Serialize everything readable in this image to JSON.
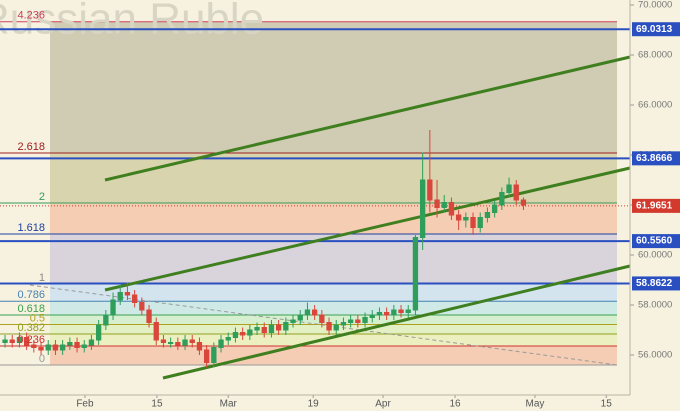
{
  "chart_data": {
    "type": "candlestick",
    "watermark": "Russian Ruble",
    "up_color": "#2f9e5b",
    "down_color": "#d9463b",
    "xlim": [
      -0.7,
      86.8
    ],
    "xticks": [
      {
        "value": 11.1,
        "label": "Feb"
      },
      {
        "value": 21.1,
        "label": "15"
      },
      {
        "value": 31,
        "label": "Mar"
      },
      {
        "value": 42.8,
        "label": "19"
      },
      {
        "value": 52.5,
        "label": "Apr"
      },
      {
        "value": 62.5,
        "label": "16"
      },
      {
        "value": 73.6,
        "label": "May"
      },
      {
        "value": 83.5,
        "label": "15"
      }
    ],
    "ylim": [
      54.4,
      70.2
    ],
    "yticks": [
      {
        "value": 56,
        "label": "56.0000"
      },
      {
        "value": 58,
        "label": "58.0000"
      },
      {
        "value": 60,
        "label": "60.0000"
      },
      {
        "value": 62,
        "label": "62.0000"
      },
      {
        "value": 64,
        "label": "64.0000"
      },
      {
        "value": 66,
        "label": "66.0000"
      },
      {
        "value": 68,
        "label": "68.0000"
      },
      {
        "value": 70,
        "label": "70.0000"
      }
    ],
    "opens": [
      56.5,
      56.6,
      56.5,
      56.7,
      56.4,
      56.3,
      56.2,
      56.4,
      56.2,
      56.4,
      56.5,
      56.3,
      56.4,
      56.6,
      57.2,
      57.6,
      58.2,
      58.5,
      58.4,
      58.1,
      57.8,
      57.3,
      56.6,
      56.5,
      56.5,
      56.4,
      56.6,
      56.5,
      56.2,
      55.7,
      56.3,
      56.6,
      56.7,
      56.9,
      56.8,
      57.0,
      57.1,
      56.9,
      57.2,
      57.0,
      57.3,
      57.4,
      57.6,
      57.8,
      57.6,
      57.3,
      57.0,
      57.2,
      57.3,
      57.4,
      57.3,
      57.5,
      57.6,
      57.7,
      57.6,
      57.8,
      57.7,
      57.8,
      60.7,
      63.0,
      62.2,
      61.9,
      62.1,
      61.6,
      61.4,
      61.5,
      61.1,
      61.5,
      61.7,
      62.0,
      62.5,
      62.8,
      62.2
    ],
    "highs": [
      56.8,
      56.8,
      56.9,
      56.9,
      56.6,
      56.5,
      56.6,
      56.6,
      56.6,
      56.7,
      56.7,
      56.6,
      56.8,
      57.4,
      57.8,
      58.5,
      58.8,
      58.9,
      58.6,
      58.3,
      58.0,
      57.5,
      56.8,
      56.7,
      56.7,
      56.8,
      56.8,
      56.7,
      56.4,
      56.5,
      56.8,
      56.9,
      57.1,
      57.1,
      57.2,
      57.3,
      57.3,
      57.4,
      57.4,
      57.5,
      57.6,
      57.8,
      58.1,
      58.0,
      57.8,
      57.5,
      57.4,
      57.5,
      57.6,
      57.6,
      57.7,
      57.8,
      57.9,
      57.9,
      58.0,
      58.0,
      58.0,
      60.8,
      64.1,
      65.0,
      63.0,
      62.4,
      62.3,
      61.8,
      61.7,
      61.7,
      61.7,
      61.9,
      62.2,
      62.7,
      63.1,
      63.0,
      62.3
    ],
    "lows": [
      56.3,
      56.3,
      56.3,
      56.2,
      56.1,
      56.0,
      56.0,
      56.0,
      56.0,
      56.2,
      56.1,
      56.1,
      56.2,
      56.4,
      57.0,
      57.4,
      58.0,
      58.2,
      57.9,
      57.6,
      57.1,
      56.4,
      56.3,
      56.3,
      56.2,
      56.2,
      56.3,
      56.0,
      55.5,
      55.5,
      56.1,
      56.4,
      56.5,
      56.6,
      56.6,
      56.8,
      56.7,
      56.7,
      56.8,
      56.8,
      57.1,
      57.2,
      57.4,
      57.4,
      57.1,
      56.8,
      56.8,
      57.0,
      57.1,
      57.1,
      57.1,
      57.3,
      57.4,
      57.4,
      57.4,
      57.5,
      57.5,
      57.6,
      60.2,
      61.7,
      61.5,
      61.7,
      61.4,
      61.0,
      61.1,
      60.8,
      60.9,
      61.3,
      61.5,
      61.8,
      62.3,
      62.0,
      61.8
    ],
    "closes": [
      56.6,
      56.5,
      56.7,
      56.4,
      56.3,
      56.2,
      56.4,
      56.2,
      56.4,
      56.5,
      56.3,
      56.4,
      56.6,
      57.2,
      57.6,
      58.2,
      58.5,
      58.4,
      58.1,
      57.8,
      57.3,
      56.6,
      56.5,
      56.5,
      56.4,
      56.6,
      56.5,
      56.2,
      55.7,
      56.3,
      56.6,
      56.7,
      56.9,
      56.8,
      57.0,
      57.1,
      56.9,
      57.2,
      57.0,
      57.3,
      57.4,
      57.6,
      57.8,
      57.6,
      57.3,
      57.0,
      57.2,
      57.3,
      57.4,
      57.3,
      57.5,
      57.6,
      57.7,
      57.6,
      57.8,
      57.7,
      57.8,
      60.7,
      63.0,
      62.2,
      61.9,
      62.1,
      61.6,
      61.4,
      61.5,
      61.1,
      61.5,
      61.7,
      62.0,
      62.5,
      62.8,
      62.2,
      62.0
    ],
    "fib_levels": [
      {
        "value": 69.33,
        "label": "4.236",
        "color": "#d04060",
        "zone": "#cfccb3"
      },
      {
        "value": 64.08,
        "label": "2.618",
        "color": "#a02020",
        "zone": "#d8d4ad"
      },
      {
        "value": 62.08,
        "label": "2",
        "color": "#3a9a5a",
        "zone": "#f4cdb2"
      },
      {
        "value": 60.84,
        "label": "1.618",
        "color": "#2040a0",
        "zone": "#d9d3dc"
      },
      {
        "value": 58.84,
        "label": "1",
        "color": "#888888",
        "zone": "#d3e4ee"
      },
      {
        "value": 58.15,
        "label": "0.786",
        "color": "#4682b4",
        "zone": "#cfeae6"
      },
      {
        "value": 57.6,
        "label": "0.618",
        "color": "#3aa050",
        "zone": "#d6efcf"
      },
      {
        "value": 57.22,
        "label": "0.5",
        "color": "#b0a020",
        "zone": "#e3f0c4"
      },
      {
        "value": 56.84,
        "label": "0.382",
        "color": "#90a020",
        "zone": "#ecf0c0"
      },
      {
        "value": 56.36,
        "label": "0.236",
        "color": "#d03030",
        "zone": "#f5cdb4"
      },
      {
        "value": 55.6,
        "label": "0",
        "color": "#999999"
      }
    ],
    "levels": [
      {
        "value": 69.0313,
        "label": "69.0313",
        "color": "#2a4fc0",
        "style": "solid"
      },
      {
        "value": 63.8666,
        "label": "63.8666",
        "color": "#2a4fc0",
        "style": "solid"
      },
      {
        "value": 61.9651,
        "label": "61.9651",
        "color": "#d23a2e",
        "style": "dotted"
      },
      {
        "value": 60.556,
        "label": "60.5560",
        "color": "#2a4fc0",
        "style": "solid"
      },
      {
        "value": 58.8622,
        "label": "58.8622",
        "color": "#2a4fc0",
        "style": "solid"
      }
    ]
  }
}
